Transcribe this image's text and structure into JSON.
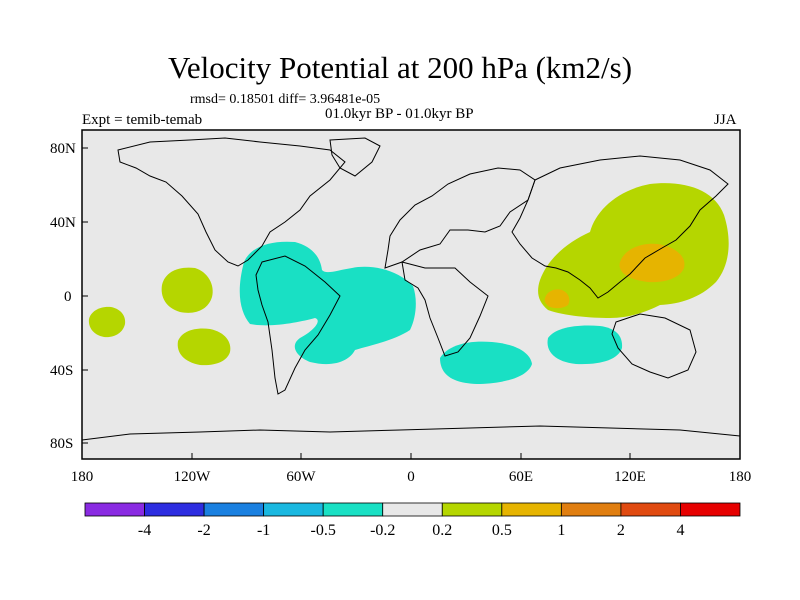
{
  "title": "Velocity Potential at 200 hPa (km2/s)",
  "stats": "rmsd= 0.18501 diff= 3.96481e-05",
  "left_label": "Expt = temib-temab",
  "center_label": "01.0kyr BP - 01.0kyr BP",
  "right_label": "JJA",
  "lat_ticks": [
    "80N",
    "40N",
    "0",
    "40S",
    "80S"
  ],
  "lon_ticks": [
    "180",
    "120W",
    "60W",
    "0",
    "60E",
    "120E",
    "180"
  ],
  "colorbar": {
    "labels": [
      "-4",
      "-2",
      "-1",
      "-0.5",
      "-0.2",
      "0.2",
      "0.5",
      "1",
      "2",
      "4"
    ],
    "colors": [
      "#8a2be2",
      "#2d2de0",
      "#1a80e0",
      "#1ab8e0",
      "#19e0c4",
      "#e8e8e8",
      "#b5d600",
      "#e6b400",
      "#e07e10",
      "#e04a10",
      "#e60000"
    ]
  },
  "colors": {
    "background": "#e8e8e8",
    "negative_fill": "#19e0c4",
    "positive_fill": "#b5d600",
    "strong_positive_fill": "#e6b400"
  }
}
